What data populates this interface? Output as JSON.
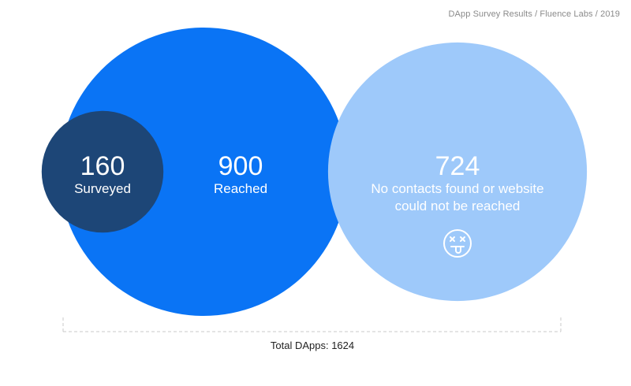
{
  "source": "DApp Survey Results / Fluence Labs / 2019",
  "total_label": "Total DApps: 1624",
  "colors": {
    "reached": "#0a74f5",
    "surveyed": "#1d4677",
    "unreached": "#9ec9fa",
    "bracket": "#c8c8c8"
  },
  "chart_data": {
    "type": "bubble",
    "total": 1624,
    "bubbles": [
      {
        "id": "reached",
        "value": 900,
        "label": "Reached"
      },
      {
        "id": "surveyed",
        "value": 160,
        "label": "Surveyed",
        "subset_of": "reached"
      },
      {
        "id": "unreached",
        "value": 724,
        "label_lines": [
          "No contacts found or website",
          "could not be reached"
        ],
        "icon": "dizzy-face-icon"
      }
    ]
  }
}
